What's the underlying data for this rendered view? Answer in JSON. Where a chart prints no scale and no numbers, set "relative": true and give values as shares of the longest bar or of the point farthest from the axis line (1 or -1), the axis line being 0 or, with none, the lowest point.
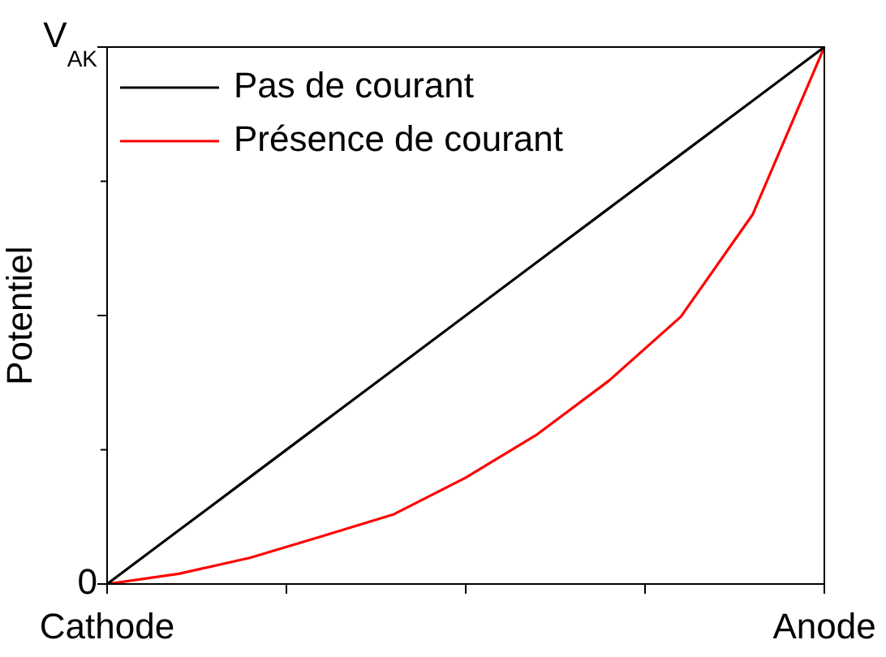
{
  "chart_data": {
    "type": "line",
    "ylabel": "Potentiel",
    "relative": true,
    "categories": [
      "Cathode",
      null,
      null,
      null,
      null,
      null,
      null,
      null,
      null,
      null,
      "Anode"
    ],
    "annotations": [
      "0",
      "V$_{AK}$"
    ],
    "series": [
      {
        "name": "Pas de courant",
        "color": "#000000",
        "values": [
          0,
          0.1,
          0.2,
          0.3,
          0.4,
          0.5,
          0.6,
          0.7,
          0.8,
          0.9,
          1
        ]
      },
      {
        "name": "Présence de courant",
        "color": "#ff0000",
        "values": [
          0,
          0.019,
          0.049,
          0.089,
          0.13,
          0.198,
          0.279,
          0.379,
          0.498,
          0.688,
          1
        ]
      }
    ],
    "legend": "top left",
    "marker": "none",
    "line_style": "solid"
  }
}
